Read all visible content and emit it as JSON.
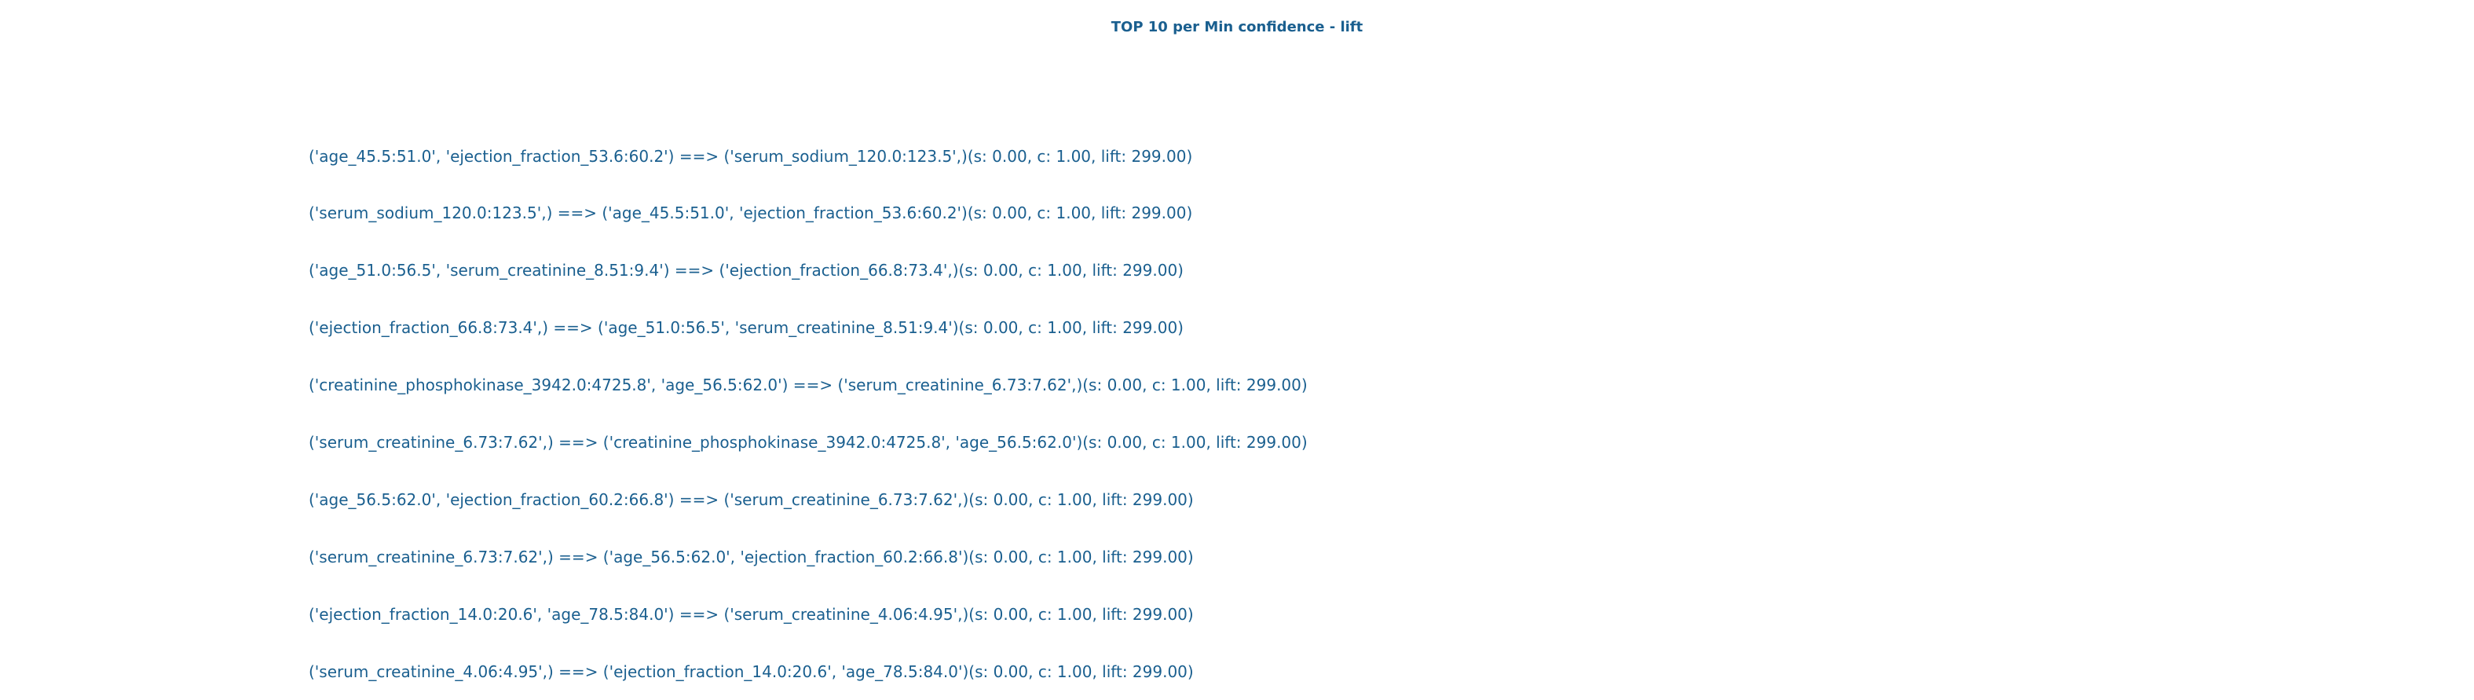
{
  "title": "TOP 10 per Min confidence - lift",
  "rules": [
    "('age_45.5:51.0', 'ejection_fraction_53.6:60.2') ==> ('serum_sodium_120.0:123.5',)(s: 0.00, c: 1.00, lift: 299.00)",
    "('serum_sodium_120.0:123.5',) ==> ('age_45.5:51.0', 'ejection_fraction_53.6:60.2')(s: 0.00, c: 1.00, lift: 299.00)",
    "('age_51.0:56.5', 'serum_creatinine_8.51:9.4') ==> ('ejection_fraction_66.8:73.4',)(s: 0.00, c: 1.00, lift: 299.00)",
    "('ejection_fraction_66.8:73.4',) ==> ('age_51.0:56.5', 'serum_creatinine_8.51:9.4')(s: 0.00, c: 1.00, lift: 299.00)",
    "('creatinine_phosphokinase_3942.0:4725.8', 'age_56.5:62.0') ==> ('serum_creatinine_6.73:7.62',)(s: 0.00, c: 1.00, lift: 299.00)",
    "('serum_creatinine_6.73:7.62',) ==> ('creatinine_phosphokinase_3942.0:4725.8', 'age_56.5:62.0')(s: 0.00, c: 1.00, lift: 299.00)",
    "('age_56.5:62.0', 'ejection_fraction_60.2:66.8') ==> ('serum_creatinine_6.73:7.62',)(s: 0.00, c: 1.00, lift: 299.00)",
    "('serum_creatinine_6.73:7.62',) ==> ('age_56.5:62.0', 'ejection_fraction_60.2:66.8')(s: 0.00, c: 1.00, lift: 299.00)",
    "('ejection_fraction_14.0:20.6', 'age_78.5:84.0') ==> ('serum_creatinine_4.06:4.95',)(s: 0.00, c: 1.00, lift: 299.00)",
    "('serum_creatinine_4.06:4.95',) ==> ('ejection_fraction_14.0:20.6', 'age_78.5:84.0')(s: 0.00, c: 1.00, lift: 299.00)"
  ]
}
